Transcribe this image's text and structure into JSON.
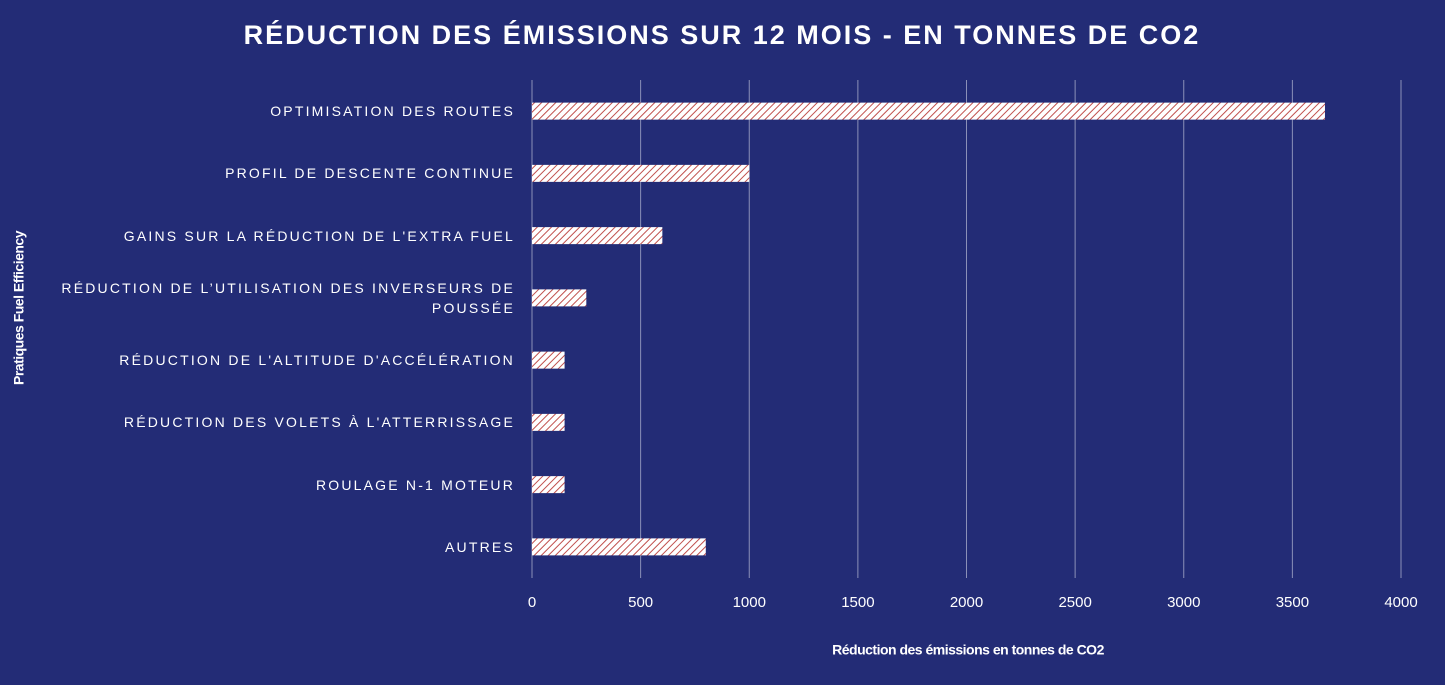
{
  "chart_data": {
    "type": "bar",
    "orientation": "horizontal",
    "title": "RÉDUCTION DES ÉMISSIONS SUR 12 MOIS - EN TONNES DE CO2",
    "x_label": "Réduction des émissions en tonnes de CO2",
    "y_label": "Pratiques Fuel Efficiency",
    "categories": [
      "OPTIMISATION DES ROUTES",
      "PROFIL DE DESCENTE CONTINUE",
      "GAINS SUR LA RÉDUCTION DE L'EXTRA FUEL",
      "RÉDUCTION DE L’UTILISATION DES INVERSEURS DE POUSSÉE",
      "RÉDUCTION DE L'ALTITUDE D'ACCÉLÉRATION",
      "RÉDUCTION DES VOLETS À L'ATTERRISSAGE",
      "ROULAGE N-1 MOTEUR",
      "AUTRES"
    ],
    "values": [
      3650,
      1000,
      600,
      250,
      150,
      150,
      150,
      800
    ],
    "color": "#c0504d",
    "xlim": [
      0,
      4000
    ],
    "xticks": [
      0,
      500,
      1000,
      1500,
      2000,
      2500,
      3000,
      3500,
      4000
    ],
    "grid": true
  }
}
